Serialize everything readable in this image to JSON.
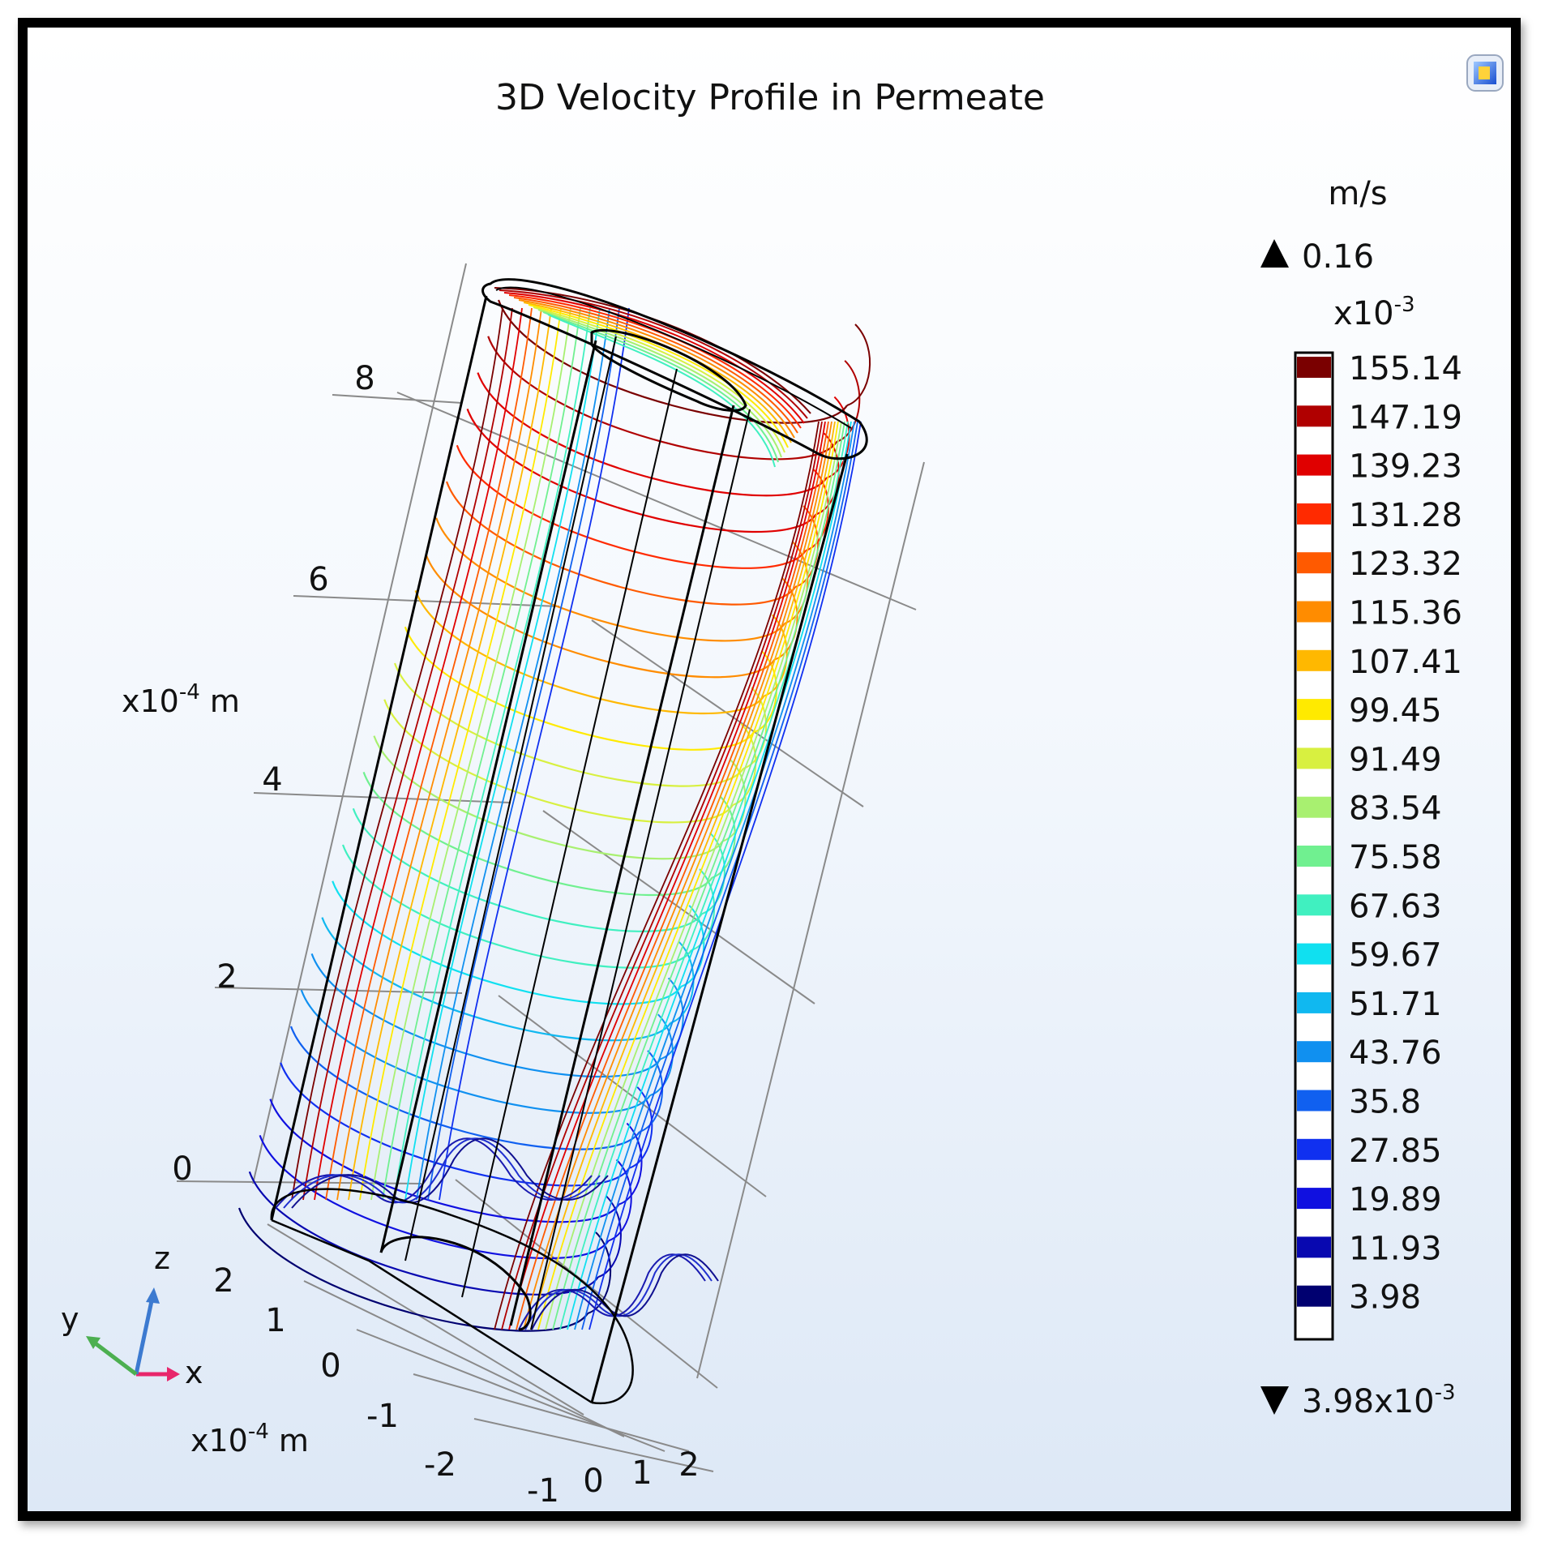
{
  "chart_data": {
    "type": "3d-contour",
    "title": "3D Velocity Profile in Permeate",
    "z_axis": {
      "label": "x10-4 m",
      "ticks": [
        "0",
        "2",
        "4",
        "6",
        "8"
      ]
    },
    "y_axis": {
      "label": "x10-4 m",
      "ticks": [
        "2",
        "1",
        "0",
        "-1",
        "-2"
      ]
    },
    "x_axis": {
      "ticks": [
        "-1",
        "0",
        "1",
        "2"
      ]
    },
    "triad": {
      "x": "x",
      "y": "y",
      "z": "z"
    },
    "colorbar": {
      "unit": "m/s",
      "max_label": "0.16",
      "scale_label": "x10-3",
      "min_label": "3.98x10-3",
      "levels": [
        155.14,
        147.19,
        139.23,
        131.28,
        123.32,
        115.36,
        107.41,
        99.45,
        91.49,
        83.54,
        75.58,
        67.63,
        59.67,
        51.71,
        43.76,
        35.8,
        27.85,
        19.89,
        11.93,
        3.98
      ],
      "labels": [
        "155.14",
        "147.19",
        "139.23",
        "131.28",
        "123.32",
        "115.36",
        "107.41",
        "99.45",
        "91.49",
        "83.54",
        "75.58",
        "67.63",
        "59.67",
        "51.71",
        "43.76",
        "35.8",
        "27.85",
        "19.89",
        "11.93",
        "3.98"
      ],
      "colors": [
        "#7a0000",
        "#b00000",
        "#e00000",
        "#ff2a00",
        "#ff5a00",
        "#ff8c00",
        "#ffb800",
        "#ffea00",
        "#d8f040",
        "#a8f070",
        "#70f090",
        "#40f0c0",
        "#10e0f0",
        "#10b8f0",
        "#1090f0",
        "#1060f0",
        "#1030f0",
        "#1010e0",
        "#0808b0",
        "#000070"
      ]
    }
  }
}
